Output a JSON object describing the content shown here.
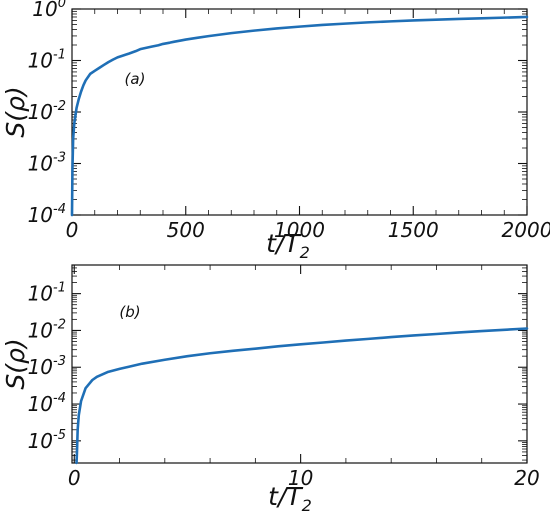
{
  "colors": {
    "series": "#1f6fb6",
    "axes": "#111111"
  },
  "chart_data": [
    {
      "type": "line",
      "panel_label": "(a)",
      "xlabel_main": "t/T",
      "xlabel_sub": "2",
      "ylabel": "S(ρ)",
      "xlim": [
        0,
        2000
      ],
      "ylim": [
        0.0001,
        1
      ],
      "y_scale": "log",
      "x_ticks": [
        0,
        500,
        1000,
        1500,
        2000
      ],
      "x_tick_labels": [
        "0",
        "500",
        "1000",
        "1500",
        "2000"
      ],
      "y_ticks": [
        0.0001,
        0.001,
        0.01,
        0.1,
        1
      ],
      "y_tick_labels": [
        {
          "base": "10",
          "exp": "-4"
        },
        {
          "base": "10",
          "exp": "-3"
        },
        {
          "base": "10",
          "exp": "-2"
        },
        {
          "base": "10",
          "exp": "-1"
        },
        {
          "base": "10",
          "exp": "0"
        }
      ],
      "series": [
        {
          "x": [
            0,
            2,
            5,
            10,
            20,
            30,
            40,
            50,
            60,
            80,
            100,
            120,
            140,
            160,
            180,
            200,
            220,
            250,
            280,
            300,
            330,
            350,
            380,
            400,
            430,
            450,
            480,
            500,
            550,
            600,
            650,
            700,
            800,
            900,
            1000,
            1100,
            1200,
            1300,
            1400,
            1500,
            1600,
            1700,
            1800,
            1900,
            2000
          ],
          "y": [
            0.0001,
            0.0008,
            0.003,
            0.006,
            0.012,
            0.018,
            0.025,
            0.033,
            0.041,
            0.055,
            0.063,
            0.072,
            0.082,
            0.093,
            0.104,
            0.115,
            0.123,
            0.136,
            0.152,
            0.166,
            0.178,
            0.186,
            0.198,
            0.21,
            0.222,
            0.232,
            0.245,
            0.255,
            0.276,
            0.297,
            0.318,
            0.34,
            0.38,
            0.42,
            0.455,
            0.49,
            0.52,
            0.55,
            0.575,
            0.6,
            0.62,
            0.64,
            0.66,
            0.68,
            0.7
          ]
        }
      ]
    },
    {
      "type": "line",
      "panel_label": "(b)",
      "xlabel_main": "t/T",
      "xlabel_sub": "2",
      "ylabel": "S(ρ)",
      "xlim": [
        -0.1,
        20
      ],
      "ylim": [
        2.5e-06,
        0.6
      ],
      "y_scale": "log",
      "x_ticks": [
        0,
        10,
        20
      ],
      "x_tick_labels": [
        "0",
        "10",
        "20"
      ],
      "y_ticks": [
        1e-05,
        0.0001,
        0.001,
        0.01,
        0.1
      ],
      "y_tick_labels": [
        {
          "base": "10",
          "exp": "-5"
        },
        {
          "base": "10",
          "exp": "-4"
        },
        {
          "base": "10",
          "exp": "-3"
        },
        {
          "base": "10",
          "exp": "-2"
        },
        {
          "base": "10",
          "exp": "-1"
        }
      ],
      "series": [
        {
          "x": [
            0.1,
            0.12,
            0.15,
            0.2,
            0.3,
            0.5,
            0.8,
            1,
            1.5,
            2,
            3,
            4,
            5,
            6,
            7,
            8,
            9,
            10,
            11,
            12,
            13,
            14,
            15,
            16,
            17,
            18,
            19,
            20
          ],
          "y": [
            2.5e-06,
            5e-06,
            2e-05,
            5e-05,
            0.00012,
            0.00027,
            0.00045,
            0.00055,
            0.00075,
            0.0009,
            0.00125,
            0.0016,
            0.002,
            0.0024,
            0.0028,
            0.0032,
            0.0037,
            0.0042,
            0.0047,
            0.0053,
            0.0059,
            0.0066,
            0.0073,
            0.008,
            0.0088,
            0.0096,
            0.0104,
            0.0113
          ]
        }
      ]
    }
  ]
}
